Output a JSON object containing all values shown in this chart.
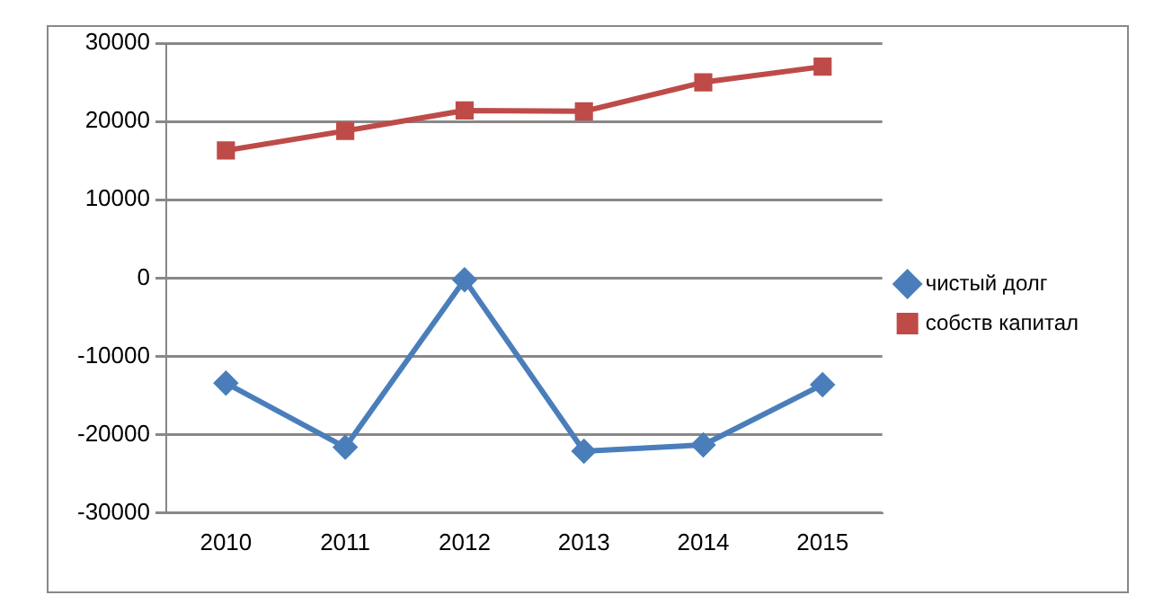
{
  "chart_data": {
    "type": "line",
    "categories": [
      "2010",
      "2011",
      "2012",
      "2013",
      "2014",
      "2015"
    ],
    "series": [
      {
        "name": "чистый долг",
        "color": "#4a7ebb",
        "marker": "diamond",
        "values": [
          -13400,
          -21600,
          -200,
          -22100,
          -21300,
          -13600
        ]
      },
      {
        "name": "собств капитал",
        "color": "#be4b48",
        "marker": "square",
        "values": [
          16300,
          18800,
          21400,
          21300,
          25000,
          27000
        ]
      }
    ],
    "ylim": [
      -30000,
      30000
    ],
    "yticks": [
      -30000,
      -20000,
      -10000,
      0,
      10000,
      20000,
      30000
    ],
    "grid": "y",
    "legend": "right",
    "line_style": "solid"
  }
}
